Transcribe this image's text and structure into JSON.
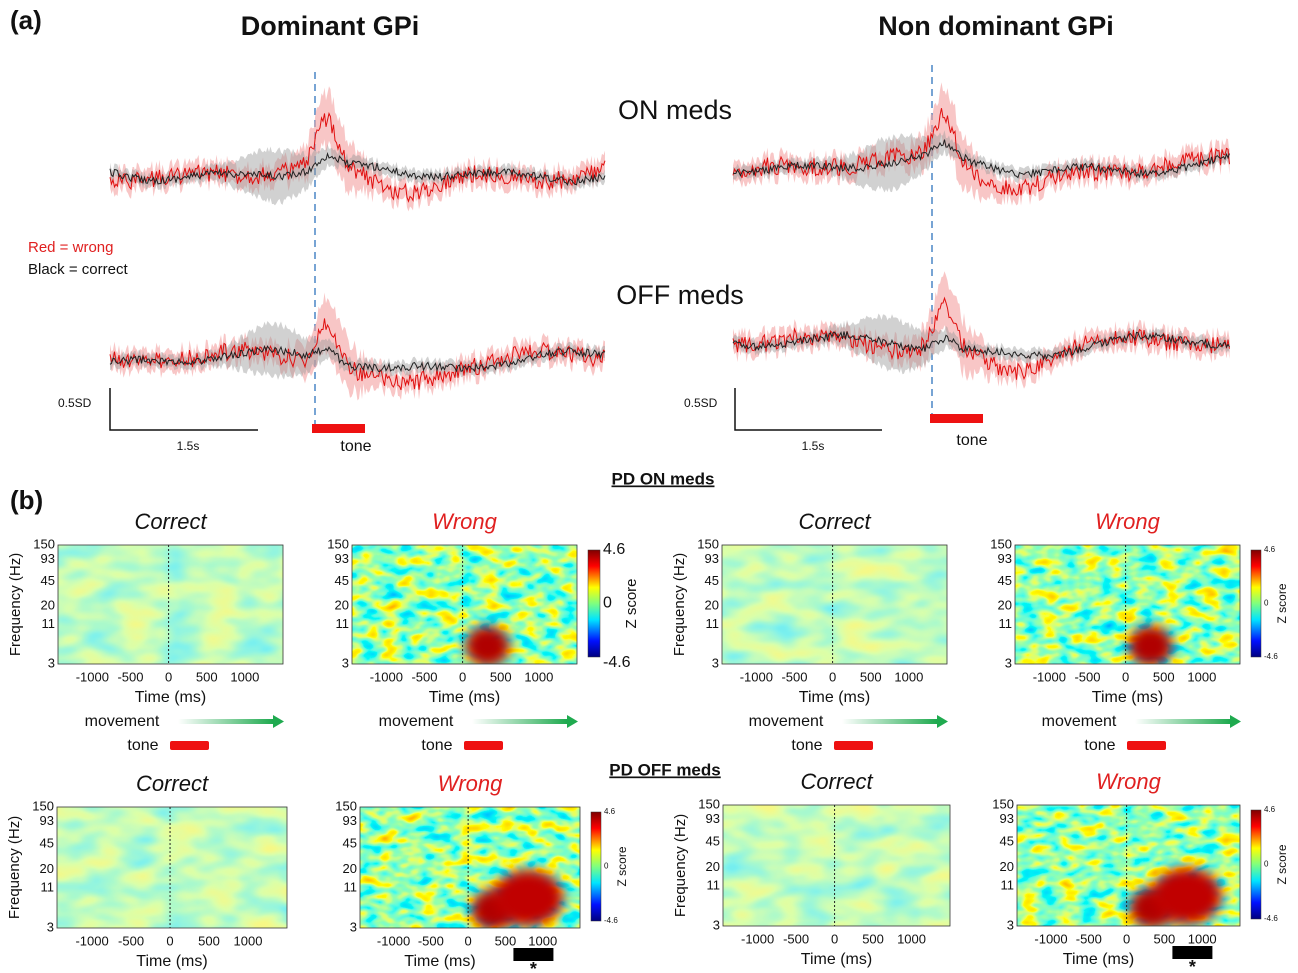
{
  "figure": {
    "panel_a": {
      "label": "(a)",
      "titles": [
        "Dominant GPi",
        "Non dominant GPi"
      ],
      "conditions": [
        "ON meds",
        "OFF meds"
      ],
      "legend": {
        "wrong": "Red = wrong",
        "correct": "Black = correct"
      },
      "scale_amplitude": "0.5SD",
      "scale_time": "1.5s",
      "tone": "tone"
    },
    "panel_b": {
      "label": "(b)",
      "sections": [
        "PD ON meds",
        "PD OFF meds"
      ],
      "map_titles": {
        "correct": "Correct",
        "wrong": "Wrong"
      },
      "y_label": "Frequency (Hz)",
      "y_ticks": [
        150,
        93,
        45,
        20,
        11,
        3
      ],
      "x_label": "Time (ms)",
      "x_ticks": [
        -1000,
        -500,
        0,
        500,
        1000
      ],
      "colorbar": {
        "label": "Z score",
        "ticks": [
          4.6,
          0,
          -4.6
        ]
      },
      "movement": "movement",
      "tone": "tone",
      "significance": "*"
    }
  }
}
